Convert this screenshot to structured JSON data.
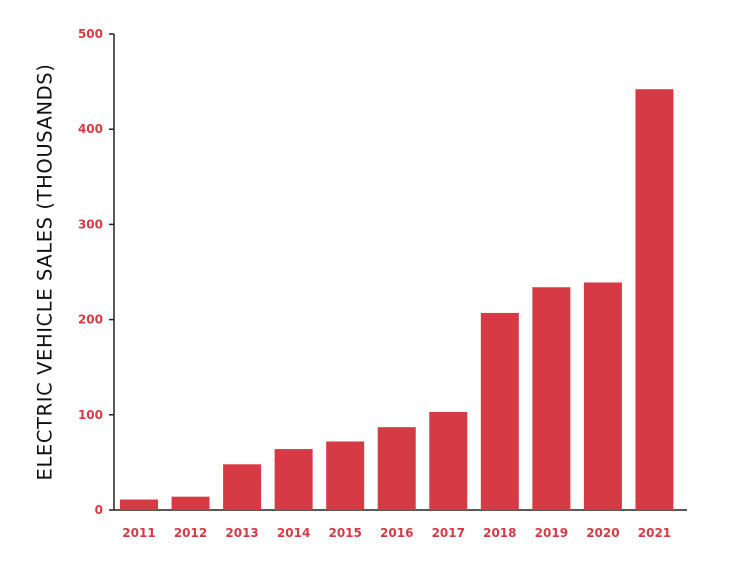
{
  "chart_data": {
    "type": "bar",
    "title": "",
    "xlabel": "",
    "ylabel": "ELECTRIC VEHICLE SALES (THOUSANDS)",
    "categories": [
      "2011",
      "2012",
      "2013",
      "2014",
      "2015",
      "2016",
      "2017",
      "2018",
      "2019",
      "2020",
      "2021"
    ],
    "values": [
      11,
      14,
      48,
      64,
      72,
      87,
      103,
      207,
      234,
      239,
      442
    ],
    "ylim": [
      0,
      500
    ],
    "yticks": [
      0,
      100,
      200,
      300,
      400,
      500
    ],
    "ytick_labels": [
      "0",
      "100",
      "200",
      "300",
      "400",
      "500"
    ],
    "grid": false,
    "legend": "none",
    "colors": {
      "bar": "#d63a45",
      "tick_label": "#d63a45",
      "axis": "#222222",
      "axis_title": "#111111"
    }
  }
}
